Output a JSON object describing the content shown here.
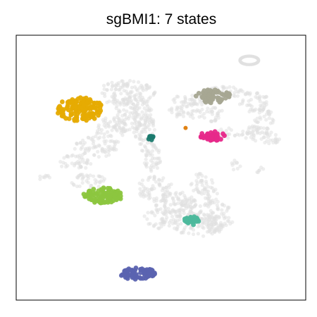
{
  "chart_data": {
    "type": "scatter",
    "title": "sgBMI1: 7 states",
    "xlabel": "",
    "ylabel": "",
    "xlim": [
      0,
      100
    ],
    "ylim": [
      0,
      100
    ],
    "grid": false,
    "legend": "none",
    "background": {
      "color": "#e0e0e0",
      "regions": [
        {
          "x": 38,
          "y": 78,
          "rx": 10,
          "ry": 5
        },
        {
          "x": 40,
          "y": 70,
          "rx": 7,
          "ry": 7
        },
        {
          "x": 45,
          "y": 62,
          "rx": 4,
          "ry": 8
        },
        {
          "x": 47,
          "y": 53,
          "rx": 3,
          "ry": 6
        },
        {
          "x": 28,
          "y": 58,
          "rx": 8,
          "ry": 4
        },
        {
          "x": 20,
          "y": 52,
          "rx": 6,
          "ry": 3
        },
        {
          "x": 33,
          "y": 65,
          "rx": 6,
          "ry": 4
        },
        {
          "x": 25,
          "y": 45,
          "rx": 6,
          "ry": 3
        },
        {
          "x": 48,
          "y": 42,
          "rx": 6,
          "ry": 5
        },
        {
          "x": 55,
          "y": 36,
          "rx": 7,
          "ry": 5
        },
        {
          "x": 50,
          "y": 31,
          "rx": 6,
          "ry": 4
        },
        {
          "x": 64,
          "y": 34,
          "rx": 10,
          "ry": 4
        },
        {
          "x": 63,
          "y": 28,
          "rx": 9,
          "ry": 4
        },
        {
          "x": 70,
          "y": 29,
          "rx": 5,
          "ry": 3
        },
        {
          "x": 64,
          "y": 44,
          "rx": 4,
          "ry": 4
        },
        {
          "x": 67,
          "y": 40,
          "rx": 3,
          "ry": 3
        },
        {
          "x": 60,
          "y": 75,
          "rx": 6,
          "ry": 3
        },
        {
          "x": 66,
          "y": 70,
          "rx": 6,
          "ry": 3
        },
        {
          "x": 56,
          "y": 71,
          "rx": 4,
          "ry": 2.5
        },
        {
          "x": 73,
          "y": 79,
          "rx": 7,
          "ry": 2.5
        },
        {
          "x": 82,
          "y": 75,
          "rx": 5,
          "ry": 4
        },
        {
          "x": 85,
          "y": 68,
          "rx": 4,
          "ry": 5
        },
        {
          "x": 83,
          "y": 63,
          "rx": 5,
          "ry": 3
        },
        {
          "x": 74,
          "y": 63,
          "rx": 5,
          "ry": 2
        },
        {
          "x": 88,
          "y": 61,
          "rx": 3,
          "ry": 3
        },
        {
          "x": 10,
          "y": 46,
          "rx": 3,
          "ry": 1.2
        },
        {
          "x": 76,
          "y": 51,
          "rx": 2,
          "ry": 2
        },
        {
          "x": 84,
          "y": 49,
          "rx": 1.5,
          "ry": 1.5
        }
      ],
      "rings": [
        {
          "x": 80.5,
          "y": 90.5,
          "rx": 3.2,
          "ry": 1.6
        }
      ]
    },
    "series": [
      {
        "color": "#e6ab02",
        "x": 22,
        "y": 72,
        "rx": 8,
        "ry": 4.5,
        "count": 140
      },
      {
        "color": "#a6a792",
        "x": 68,
        "y": 77,
        "rx": 6,
        "ry": 2.6,
        "count": 60
      },
      {
        "color": "#e7298a",
        "x": 68,
        "y": 62,
        "rx": 4.5,
        "ry": 1.8,
        "count": 40
      },
      {
        "color": "#1b7a6e",
        "x": 46.5,
        "y": 61.2,
        "rx": 1.1,
        "ry": 0.9,
        "count": 8
      },
      {
        "color": "#e08214",
        "x": 58.5,
        "y": 65,
        "rx": 0.4,
        "ry": 0.4,
        "count": 3
      },
      {
        "color": "#8cc63f",
        "x": 30,
        "y": 39.5,
        "rx": 6.8,
        "ry": 2.9,
        "count": 95
      },
      {
        "color": "#4db89c",
        "x": 61,
        "y": 30,
        "rx": 3.2,
        "ry": 1.6,
        "count": 26
      },
      {
        "color": "#5b63b0",
        "x": 42,
        "y": 10,
        "rx": 6,
        "ry": 2.3,
        "count": 75
      }
    ]
  }
}
